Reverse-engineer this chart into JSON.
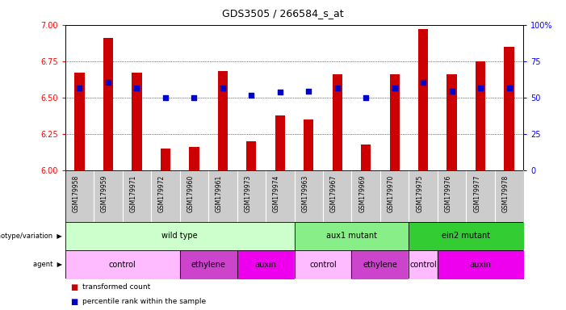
{
  "title": "GDS3505 / 266584_s_at",
  "samples": [
    "GSM179958",
    "GSM179959",
    "GSM179971",
    "GSM179972",
    "GSM179960",
    "GSM179961",
    "GSM179973",
    "GSM179974",
    "GSM179963",
    "GSM179967",
    "GSM179969",
    "GSM179970",
    "GSM179975",
    "GSM179976",
    "GSM179977",
    "GSM179978"
  ],
  "bar_values": [
    6.67,
    6.91,
    6.67,
    6.15,
    6.16,
    6.68,
    6.2,
    6.38,
    6.35,
    6.66,
    6.18,
    6.66,
    6.97,
    6.66,
    6.75,
    6.85
  ],
  "dot_values": [
    6.565,
    6.605,
    6.565,
    6.5,
    6.5,
    6.565,
    6.515,
    6.54,
    6.545,
    6.565,
    6.5,
    6.565,
    6.605,
    6.545,
    6.565,
    6.565
  ],
  "ylim_left": [
    6.0,
    7.0
  ],
  "ylim_right": [
    0,
    100
  ],
  "yticks_left": [
    6.0,
    6.25,
    6.5,
    6.75,
    7.0
  ],
  "yticks_right": [
    0,
    25,
    50,
    75,
    100
  ],
  "bar_color": "#cc0000",
  "dot_color": "#0000cc",
  "bar_baseline": 6.0,
  "genotype_groups": [
    {
      "label": "wild type",
      "start": 0,
      "end": 7,
      "color": "#ccffcc"
    },
    {
      "label": "aux1 mutant",
      "start": 8,
      "end": 11,
      "color": "#99ee99"
    },
    {
      "label": "ein2 mutant",
      "start": 12,
      "end": 15,
      "color": "#33cc33"
    }
  ],
  "agent_groups": [
    {
      "label": "control",
      "start": 0,
      "end": 3,
      "color": "#ffaaff"
    },
    {
      "label": "ethylene",
      "start": 4,
      "end": 5,
      "color": "#dd44dd"
    },
    {
      "label": "auxin",
      "start": 6,
      "end": 7,
      "color": "#ff00ff"
    },
    {
      "label": "control",
      "start": 8,
      "end": 9,
      "color": "#ffaaff"
    },
    {
      "label": "ethylene",
      "start": 10,
      "end": 11,
      "color": "#dd44dd"
    },
    {
      "label": "control",
      "start": 12,
      "end": 12,
      "color": "#ffaaff"
    },
    {
      "label": "auxin",
      "start": 13,
      "end": 15,
      "color": "#ff00ff"
    }
  ],
  "legend_red_label": "transformed count",
  "legend_blue_label": "percentile rank within the sample",
  "bg_label_color": "#cccccc",
  "grid_lines": [
    6.25,
    6.5,
    6.75
  ]
}
